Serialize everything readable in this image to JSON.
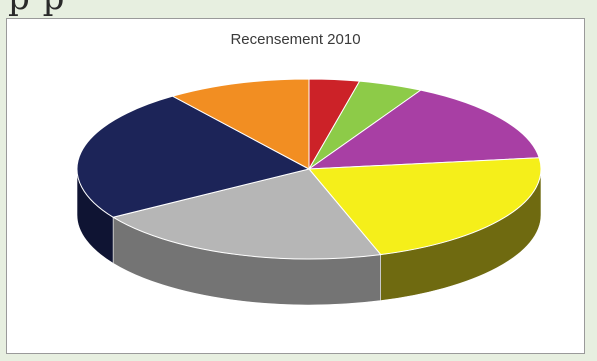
{
  "page": {
    "top_text": "p                                          p"
  },
  "chart_data": {
    "type": "pie",
    "title": "Recensement 2010",
    "values": [
      3.5,
      4.5,
      15,
      22,
      21,
      24,
      10
    ],
    "colors": [
      "#cc2228",
      "#8dcb48",
      "#a83fa4",
      "#f5ef1a",
      "#b6b6b6",
      "#1c2458",
      "#f28e22"
    ],
    "side_colors": [
      "#7a1316",
      "#567a2b",
      "#662663",
      "#6f6a10",
      "#747474",
      "#0f1433",
      "#9a5814"
    ],
    "three_d": true,
    "legend": "none",
    "data_labels": false
  }
}
